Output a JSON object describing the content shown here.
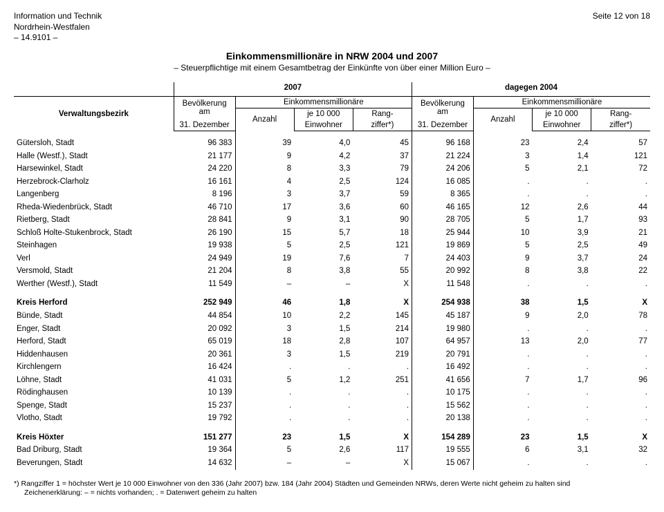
{
  "header": {
    "org1": "Information und Technik",
    "org2": "Nordrhein-Westfalen",
    "code": "– 14.9101 –",
    "page": "Seite 12 von 18"
  },
  "title": {
    "main": "Einkommensmillionäre in NRW 2004 und 2007",
    "sub": "– Steuerpflichtige mit einem Gesamtbetrag der Einkünfte von über einer Million Euro –"
  },
  "columns": {
    "verwaltungsbezirk": "Verwaltungsbezirk",
    "year_2007": "2007",
    "year_2004": "dagegen 2004",
    "bevoelkerung": "Bevölkerung\nam\n31. Dezember",
    "bev_l1": "Bevölkerung",
    "bev_l2": "am",
    "bev_l3": "31. Dezember",
    "einkom": "Einkommensmillionäre",
    "anzahl": "Anzahl",
    "je10000": "je 10 000\nEinwohner",
    "je_l1": "je 10 000",
    "je_l2": "Einwohner",
    "rang": "Rang-\nziffer*)",
    "rang_l1": "Rang-",
    "rang_l2": "ziffer*)"
  },
  "groups": [
    {
      "bold": false,
      "rows": [
        {
          "name": "Gütersloh, Stadt",
          "b07": "96 383",
          "a07": "39",
          "j07": "4,0",
          "r07": "45",
          "b04": "96 168",
          "a04": "23",
          "j04": "2,4",
          "r04": "57"
        },
        {
          "name": "Halle (Westf.), Stadt",
          "b07": "21 177",
          "a07": "9",
          "j07": "4,2",
          "r07": "37",
          "b04": "21 224",
          "a04": "3",
          "j04": "1,4",
          "r04": "121"
        },
        {
          "name": "Harsewinkel, Stadt",
          "b07": "24 220",
          "a07": "8",
          "j07": "3,3",
          "r07": "79",
          "b04": "24 206",
          "a04": "5",
          "j04": "2,1",
          "r04": "72"
        },
        {
          "name": "Herzebrock-Clarholz",
          "b07": "16 161",
          "a07": "4",
          "j07": "2,5",
          "r07": "124",
          "b04": "16 085",
          "a04": ".",
          "j04": ".",
          "r04": "."
        },
        {
          "name": "Langenberg",
          "b07": "8 196",
          "a07": "3",
          "j07": "3,7",
          "r07": "59",
          "b04": "8 365",
          "a04": ".",
          "j04": ".",
          "r04": "."
        },
        {
          "name": "Rheda-Wiedenbrück, Stadt",
          "b07": "46 710",
          "a07": "17",
          "j07": "3,6",
          "r07": "60",
          "b04": "46 165",
          "a04": "12",
          "j04": "2,6",
          "r04": "44"
        },
        {
          "name": "Rietberg, Stadt",
          "b07": "28 841",
          "a07": "9",
          "j07": "3,1",
          "r07": "90",
          "b04": "28 705",
          "a04": "5",
          "j04": "1,7",
          "r04": "93"
        },
        {
          "name": "Schloß Holte-Stukenbrock, Stadt",
          "b07": "26 190",
          "a07": "15",
          "j07": "5,7",
          "r07": "18",
          "b04": "25 944",
          "a04": "10",
          "j04": "3,9",
          "r04": "21"
        },
        {
          "name": "Steinhagen",
          "b07": "19 938",
          "a07": "5",
          "j07": "2,5",
          "r07": "121",
          "b04": "19 869",
          "a04": "5",
          "j04": "2,5",
          "r04": "49"
        },
        {
          "name": "Verl",
          "b07": "24 949",
          "a07": "19",
          "j07": "7,6",
          "r07": "7",
          "b04": "24 403",
          "a04": "9",
          "j04": "3,7",
          "r04": "24"
        },
        {
          "name": "Versmold, Stadt",
          "b07": "21 204",
          "a07": "8",
          "j07": "3,8",
          "r07": "55",
          "b04": "20 992",
          "a04": "8",
          "j04": "3,8",
          "r04": "22"
        },
        {
          "name": "Werther (Westf.), Stadt",
          "b07": "11 549",
          "a07": "–",
          "j07": "–",
          "r07": "X",
          "b04": "11 548",
          "a04": ".",
          "j04": ".",
          "r04": "."
        }
      ]
    },
    {
      "bold_first": true,
      "rows": [
        {
          "name": "Kreis Herford",
          "b07": "252 949",
          "a07": "46",
          "j07": "1,8",
          "r07": "X",
          "b04": "254 938",
          "a04": "38",
          "j04": "1,5",
          "r04": "X",
          "bold": true
        },
        {
          "name": "Bünde, Stadt",
          "b07": "44 854",
          "a07": "10",
          "j07": "2,2",
          "r07": "145",
          "b04": "45 187",
          "a04": "9",
          "j04": "2,0",
          "r04": "78"
        },
        {
          "name": "Enger, Stadt",
          "b07": "20 092",
          "a07": "3",
          "j07": "1,5",
          "r07": "214",
          "b04": "19 980",
          "a04": ".",
          "j04": ".",
          "r04": "."
        },
        {
          "name": "Herford, Stadt",
          "b07": "65 019",
          "a07": "18",
          "j07": "2,8",
          "r07": "107",
          "b04": "64 957",
          "a04": "13",
          "j04": "2,0",
          "r04": "77"
        },
        {
          "name": "Hiddenhausen",
          "b07": "20 361",
          "a07": "3",
          "j07": "1,5",
          "r07": "219",
          "b04": "20 791",
          "a04": ".",
          "j04": ".",
          "r04": "."
        },
        {
          "name": "Kirchlengern",
          "b07": "16 424",
          "a07": ".",
          "j07": ".",
          "r07": ".",
          "b04": "16 492",
          "a04": ".",
          "j04": ".",
          "r04": "."
        },
        {
          "name": "Löhne, Stadt",
          "b07": "41 031",
          "a07": "5",
          "j07": "1,2",
          "r07": "251",
          "b04": "41 656",
          "a04": "7",
          "j04": "1,7",
          "r04": "96"
        },
        {
          "name": "Rödinghausen",
          "b07": "10 139",
          "a07": ".",
          "j07": ".",
          "r07": ".",
          "b04": "10 175",
          "a04": ".",
          "j04": ".",
          "r04": "."
        },
        {
          "name": "Spenge, Stadt",
          "b07": "15 237",
          "a07": ".",
          "j07": ".",
          "r07": ".",
          "b04": "15 562",
          "a04": ".",
          "j04": ".",
          "r04": "."
        },
        {
          "name": "Vlotho, Stadt",
          "b07": "19 792",
          "a07": ".",
          "j07": ".",
          "r07": ".",
          "b04": "20 138",
          "a04": ".",
          "j04": ".",
          "r04": "."
        }
      ]
    },
    {
      "bold_first": true,
      "rows": [
        {
          "name": "Kreis Höxter",
          "b07": "151 277",
          "a07": "23",
          "j07": "1,5",
          "r07": "X",
          "b04": "154 289",
          "a04": "23",
          "j04": "1,5",
          "r04": "X",
          "bold": true
        },
        {
          "name": "Bad Driburg, Stadt",
          "b07": "19 364",
          "a07": "5",
          "j07": "2,6",
          "r07": "117",
          "b04": "19 555",
          "a04": "6",
          "j04": "3,1",
          "r04": "32"
        },
        {
          "name": "Beverungen, Stadt",
          "b07": "14 632",
          "a07": "–",
          "j07": "–",
          "r07": "X",
          "b04": "15 067",
          "a04": ".",
          "j04": ".",
          "r04": "."
        }
      ]
    }
  ],
  "footnote": {
    "line1": "*) Rangziffer 1 = höchster Wert je 10 000 Einwohner von den 336 (Jahr 2007) bzw. 184 (Jahr 2004) Städten und Gemeinden NRWs, deren Werte nicht geheim zu halten sind",
    "line2": "Zeichenerklärung: – = nichts vorhanden; . = Datenwert geheim zu halten"
  }
}
